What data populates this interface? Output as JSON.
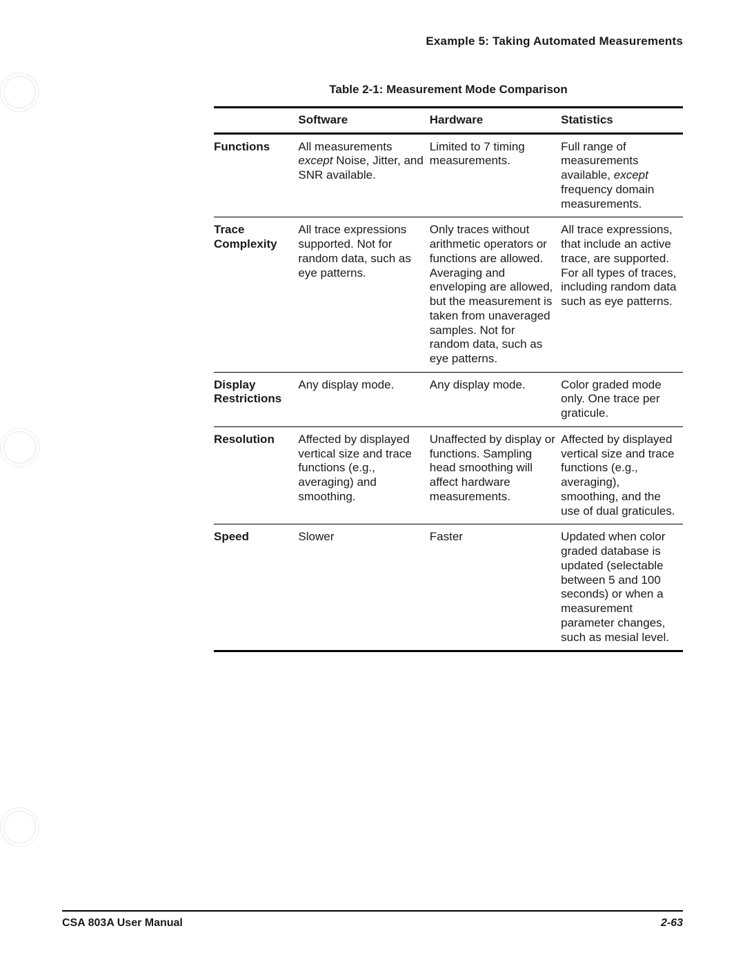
{
  "header": "Example 5: Taking Automated Measurements",
  "table": {
    "caption": "Table 2-1:  Measurement Mode Comparison",
    "columns": [
      "",
      "Software",
      "Hardware",
      "Statistics"
    ],
    "rows": [
      {
        "label": "Functions",
        "software_pre": "All measurements ",
        "software_em": "except",
        "software_post": " Noise, Jitter, and SNR available.",
        "hardware": "Limited to 7 timing measurements.",
        "stats_pre": "Full range of measurements available, ",
        "stats_em": "except",
        "stats_post": " frequency domain measurements."
      },
      {
        "label": "Trace Complexity",
        "software": "All trace expressions supported. Not for random data, such as eye patterns.",
        "hardware": "Only traces without arithmetic operators or functions are allowed. Averaging and enveloping are allowed, but the measurement is taken from unaveraged samples. Not for random data, such as eye patterns.",
        "statistics": "All trace expressions, that include an active trace, are supported. For all types of traces, including random data such as eye patterns."
      },
      {
        "label": "Display Restrictions",
        "software": "Any display mode.",
        "hardware": "Any display mode.",
        "statistics": "Color graded mode only. One trace per graticule."
      },
      {
        "label": "Resolution",
        "software": "Affected by displayed vertical size and trace functions (e.g., averaging) and smoothing.",
        "hardware": "Unaffected by display or functions. Sampling head smoothing will affect hardware measurements.",
        "statistics": "Affected by displayed vertical size and trace functions (e.g., averaging), smoothing, and the use of dual graticules."
      },
      {
        "label": "Speed",
        "software": "Slower",
        "hardware": "Faster",
        "statistics": "Updated when color graded database is updated (selectable between 5 and 100 seconds) or when a measurement parameter changes, such as mesial level."
      }
    ]
  },
  "footer": {
    "left": "CSA 803A User Manual",
    "right": "2-63"
  }
}
